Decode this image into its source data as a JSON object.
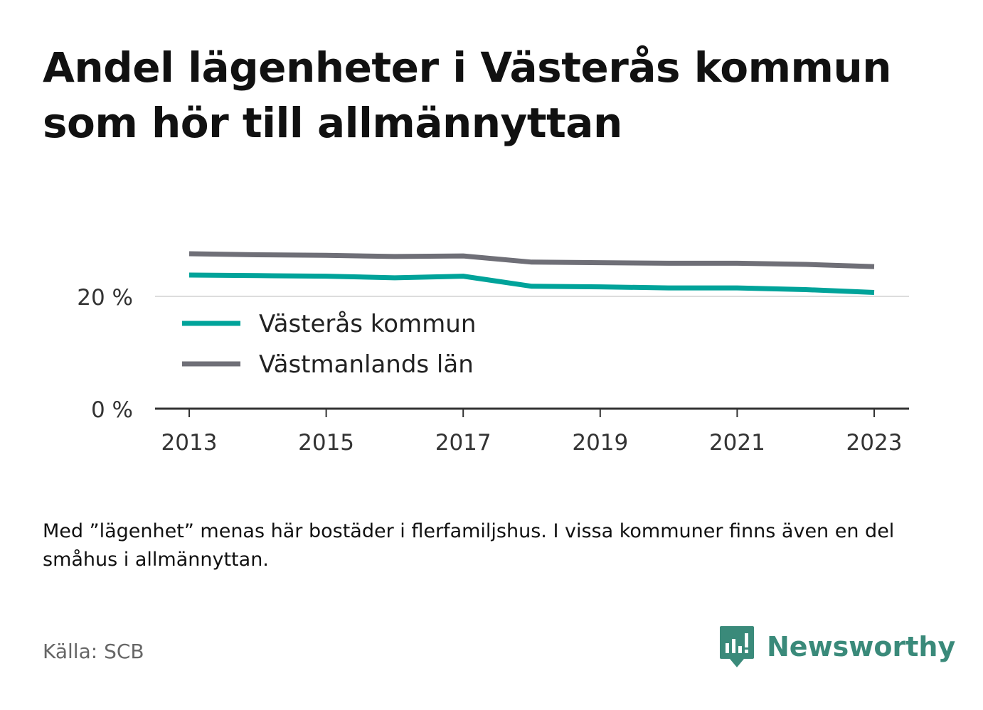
{
  "title": "Andel lägenheter i Västerås kommun som hör till allmännyttan",
  "note": "Med ”lägenhet” menas här bostäder i flerfamiljshus. I vissa kommuner finns även en del småhus i allmännyttan.",
  "source": "Källa: SCB",
  "brand": {
    "name": "Newsworthy",
    "icon": "newsworthy-logo-icon",
    "color": "#3a8a7a"
  },
  "chart_data": {
    "type": "line",
    "x": [
      2013,
      2014,
      2015,
      2016,
      2017,
      2018,
      2019,
      2020,
      2021,
      2022,
      2023
    ],
    "x_ticks": [
      "2013",
      "2015",
      "2017",
      "2019",
      "2021",
      "2023"
    ],
    "y_ticks": [
      "0 %",
      "20 %"
    ],
    "ylim": [
      0,
      40
    ],
    "grid": true,
    "legend_position": "inside-lower-left",
    "series": [
      {
        "name": "Västerås kommun",
        "color": "#00a39a",
        "values": [
          23.8,
          23.7,
          23.6,
          23.3,
          23.6,
          21.8,
          21.7,
          21.5,
          21.5,
          21.2,
          20.7
        ]
      },
      {
        "name": "Västmanlands län",
        "color": "#6f6f77",
        "values": [
          27.6,
          27.4,
          27.3,
          27.1,
          27.2,
          26.1,
          26.0,
          25.9,
          25.9,
          25.7,
          25.3
        ]
      }
    ]
  }
}
